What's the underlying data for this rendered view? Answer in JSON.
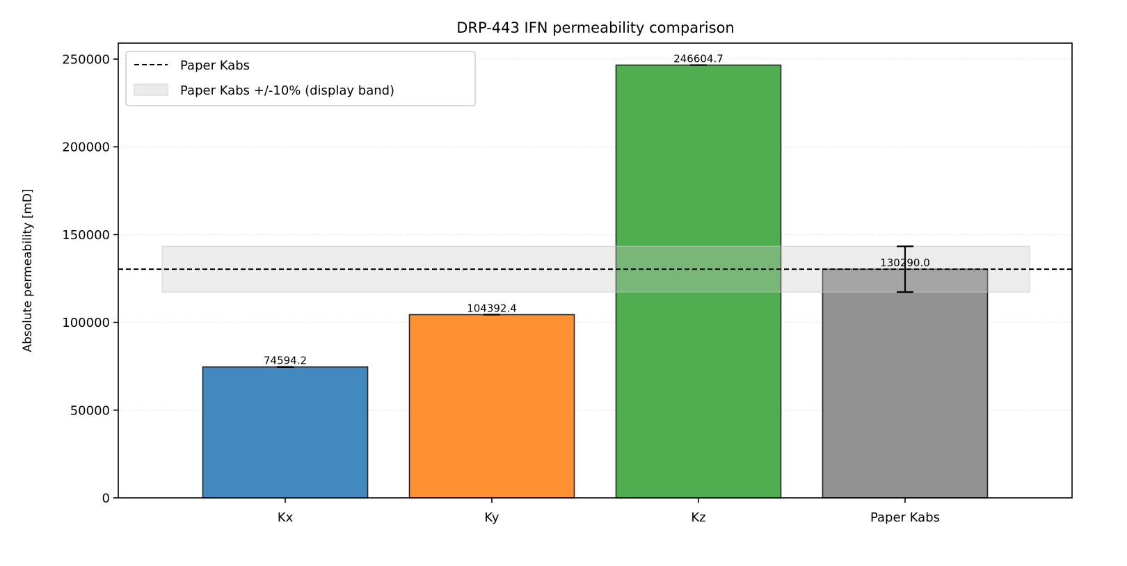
{
  "chart_data": {
    "type": "bar",
    "title": "DRP-443 IFN permeability comparison",
    "xlabel": "",
    "ylabel": "Absolute permeability [mD]",
    "categories": [
      "Kx",
      "Ky",
      "Kz",
      "Paper Kabs"
    ],
    "values": [
      74594.2,
      104392.4,
      246604.7,
      130290.0
    ],
    "value_labels": [
      "74594.2",
      "104392.4",
      "246604.7",
      "130290.0"
    ],
    "bar_colors": [
      "#4189be",
      "#ff9133",
      "#4fae4f",
      "#929292"
    ],
    "error_bars": [
      {
        "category": "Kx",
        "low": 74594.2,
        "high": 74594.2
      },
      {
        "category": "Ky",
        "low": 104392.4,
        "high": 104392.4
      },
      {
        "category": "Kz",
        "low": 246604.7,
        "high": 246604.7
      },
      {
        "category": "Paper Kabs",
        "low": 117261.0,
        "high": 143319.0
      }
    ],
    "reference_line": {
      "label": "Paper Kabs",
      "value": 130290.0,
      "style": "dashed",
      "color": "#000000"
    },
    "reference_band": {
      "label": "Paper Kabs +/-10% (display band)",
      "low": 117261.0,
      "high": 143319.0,
      "color": "#e0e0e0"
    },
    "ylim": [
      0,
      259000
    ],
    "yticks": [
      0,
      50000,
      100000,
      150000,
      200000,
      250000
    ],
    "ytick_labels": [
      "0",
      "50000",
      "100000",
      "150000",
      "200000",
      "250000"
    ],
    "grid": {
      "y": true,
      "style": "dotted"
    },
    "legend": {
      "position": "upper left",
      "entries": [
        "Paper Kabs",
        "Paper Kabs +/-10% (display band)"
      ]
    }
  }
}
